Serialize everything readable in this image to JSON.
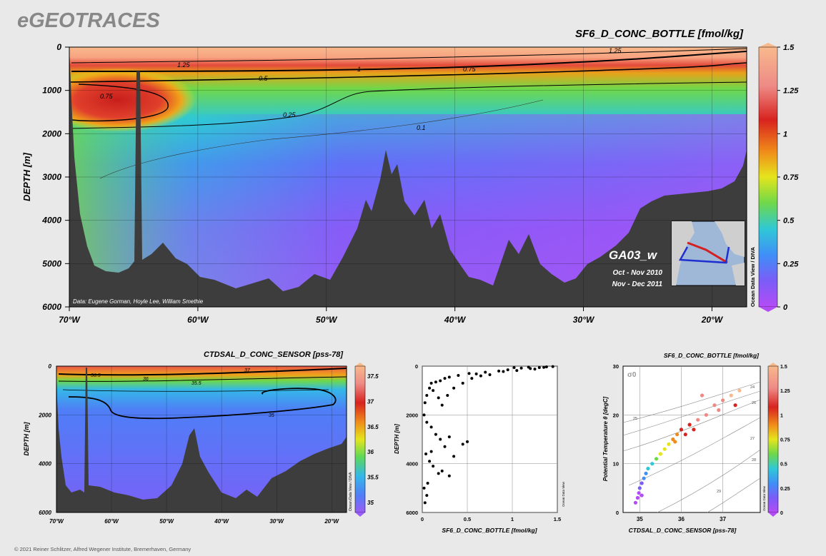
{
  "header": {
    "logo": "eGEOTRACES"
  },
  "footer": {
    "credit": "© 2021 Reiner Schlitzer, Alfred Wegener Institute, Bremerhaven, Germany"
  },
  "colors": {
    "background": "#e9e9e9",
    "seafloor": "#3d3d3d",
    "scale": [
      "#b44cf6",
      "#7b5cf7",
      "#3f8ff7",
      "#2fc8d6",
      "#6fd84a",
      "#e5e51c",
      "#f08a1a",
      "#d8231f",
      "#ee8a86",
      "#f8b98c"
    ]
  },
  "section": {
    "title": "SF6_D_CONC_BOTTLE [fmol/kg]",
    "ylabel": "DEPTH [m]",
    "credit": "Data: Eugene Gorman, Hoyle Lee, William Smethie",
    "cruise": "GA03_w",
    "dates": [
      "Oct - Nov 2010",
      "Nov - Dec 2011"
    ],
    "odv_label": "Ocean Data View / DIVA",
    "colorbar_ticks": [
      "1.5",
      "1.25",
      "1",
      "0.75",
      "0.5",
      "0.25",
      "0"
    ],
    "contour_labels": [
      "1.25",
      "1.25",
      "1",
      "0.75",
      "0.5",
      "0.75",
      "0.25",
      "0.1"
    ]
  },
  "salinity": {
    "title": "CTDSAL_D_CONC_SENSOR [pss-78]",
    "ylabel": "DEPTH [m]",
    "odv_label": "Ocean Data View / DIVA",
    "colorbar_ticks": [
      "37.5",
      "37",
      "36.5",
      "36",
      "35.5",
      "35"
    ],
    "contour_labels": [
      "36.5",
      "37",
      "36",
      "35.5",
      "35"
    ]
  },
  "profile": {
    "xlabel": "SF6_D_CONC_BOTTLE [fmol/kg]",
    "ylabel": "DEPTH [m]",
    "odv_label": "Ocean Data View"
  },
  "ts": {
    "title": "SF6_D_CONC_BOTTLE [fmol/kg]",
    "xlabel": "CTDSAL_D_CONC_SENSOR [pss-78]",
    "ylabel": "Potential Temperature θ [degC]",
    "sigma_label": "σ0",
    "odv_label": "Ocean Data View",
    "colorbar_ticks": [
      "1.5",
      "1.25",
      "1",
      "0.75",
      "0.5",
      "0.25",
      "0"
    ],
    "isopycnal_labels": [
      "24",
      "25",
      "26",
      "27",
      "28",
      "29"
    ]
  },
  "chart_data": [
    {
      "type": "heatmap",
      "id": "sf6_section",
      "title": "SF6_D_CONC_BOTTLE [fmol/kg]",
      "ylabel": "DEPTH [m]",
      "x_ticks": [
        "70°W",
        "60°W",
        "50°W",
        "40°W",
        "30°W",
        "20°W"
      ],
      "x_tick_values": [
        -70,
        -60,
        -50,
        -40,
        -30,
        -20
      ],
      "y_ticks": [
        0,
        1000,
        2000,
        3000,
        4000,
        5000,
        6000
      ],
      "xlim": [
        -70,
        -17.3
      ],
      "ylim": [
        0,
        6000
      ],
      "colorbar_range": [
        0,
        1.5
      ]
    },
    {
      "type": "heatmap",
      "id": "salinity_section",
      "title": "CTDSAL_D_CONC_SENSOR [pss-78]",
      "ylabel": "DEPTH [m]",
      "x_ticks": [
        "70°W",
        "60°W",
        "50°W",
        "40°W",
        "30°W",
        "20°W"
      ],
      "x_tick_values": [
        -70,
        -60,
        -50,
        -40,
        -30,
        -20
      ],
      "y_ticks": [
        0,
        2000,
        4000,
        6000
      ],
      "xlim": [
        -70,
        -17.3
      ],
      "ylim": [
        0,
        6000
      ],
      "colorbar_range": [
        34.8,
        37.7
      ]
    },
    {
      "type": "scatter",
      "id": "sf6_profile",
      "xlabel": "SF6_D_CONC_BOTTLE [fmol/kg]",
      "ylabel": "DEPTH [m]",
      "x_ticks": [
        "0",
        "0.5",
        "1",
        "1.5"
      ],
      "y_ticks": [
        "0",
        "2000",
        "4000",
        "6000"
      ],
      "xlim": [
        0,
        1.5
      ],
      "ylim": [
        0,
        6000
      ],
      "points": [
        [
          1.18,
          40
        ],
        [
          1.3,
          60
        ],
        [
          1.38,
          30
        ],
        [
          1.1,
          80
        ],
        [
          1.25,
          120
        ],
        [
          0.95,
          150
        ],
        [
          1.02,
          60
        ],
        [
          0.85,
          200
        ],
        [
          0.7,
          250
        ],
        [
          0.6,
          320
        ],
        [
          0.52,
          300
        ],
        [
          0.4,
          380
        ],
        [
          0.3,
          450
        ],
        [
          0.25,
          500
        ],
        [
          0.2,
          600
        ],
        [
          0.15,
          650
        ],
        [
          0.1,
          700
        ],
        [
          0.08,
          900
        ],
        [
          0.05,
          1200
        ],
        [
          0.03,
          1500
        ],
        [
          0.12,
          1000
        ],
        [
          0.18,
          1300
        ],
        [
          0.22,
          1600
        ],
        [
          0.28,
          1200
        ],
        [
          0.35,
          900
        ],
        [
          0.45,
          700
        ],
        [
          0.55,
          500
        ],
        [
          0.65,
          400
        ],
        [
          0.75,
          350
        ],
        [
          0.9,
          220
        ],
        [
          1.05,
          180
        ],
        [
          1.2,
          100
        ],
        [
          1.45,
          20
        ],
        [
          1.35,
          50
        ],
        [
          0.02,
          2000
        ],
        [
          0.05,
          2300
        ],
        [
          0.1,
          2500
        ],
        [
          0.15,
          2800
        ],
        [
          0.2,
          3000
        ],
        [
          0.25,
          3300
        ],
        [
          0.3,
          2900
        ],
        [
          0.5,
          3100
        ],
        [
          0.45,
          3200
        ],
        [
          0.04,
          3600
        ],
        [
          0.08,
          3900
        ],
        [
          0.12,
          4100
        ],
        [
          0.18,
          4400
        ],
        [
          0.22,
          4300
        ],
        [
          0.3,
          4500
        ],
        [
          0.02,
          5000
        ],
        [
          0.05,
          5300
        ],
        [
          0.03,
          5600
        ],
        [
          0.06,
          4800
        ],
        [
          0.1,
          3500
        ],
        [
          0.35,
          3700
        ]
      ]
    },
    {
      "type": "scatter",
      "id": "ts_diagram",
      "title": "SF6_D_CONC_BOTTLE [fmol/kg]",
      "xlabel": "CTDSAL_D_CONC_SENSOR [pss-78]",
      "ylabel": "Potential Temperature θ [degC]",
      "x_ticks": [
        "35",
        "36",
        "37"
      ],
      "y_ticks": [
        "0",
        "10",
        "20",
        "30"
      ],
      "xlim": [
        34.6,
        37.9
      ],
      "ylim": [
        0,
        30
      ],
      "colorbar_range": [
        0,
        1.5
      ],
      "points": [
        [
          34.9,
          2,
          0.02
        ],
        [
          34.95,
          3,
          0.05
        ],
        [
          34.98,
          4,
          0.08
        ],
        [
          35.0,
          5,
          0.12
        ],
        [
          35.05,
          6,
          0.2
        ],
        [
          35.1,
          7,
          0.3
        ],
        [
          35.15,
          8,
          0.35
        ],
        [
          35.2,
          9,
          0.45
        ],
        [
          35.3,
          10,
          0.55
        ],
        [
          35.4,
          11,
          0.65
        ],
        [
          35.5,
          12,
          0.75
        ],
        [
          35.6,
          13,
          0.85
        ],
        [
          35.7,
          14,
          0.9
        ],
        [
          35.8,
          15,
          1.0
        ],
        [
          35.9,
          16,
          1.05
        ],
        [
          36.0,
          17,
          1.1
        ],
        [
          36.2,
          18,
          1.2
        ],
        [
          36.4,
          19,
          1.25
        ],
        [
          36.6,
          20,
          1.3
        ],
        [
          36.8,
          22,
          1.35
        ],
        [
          37.0,
          23,
          1.4
        ],
        [
          37.2,
          24,
          1.42
        ],
        [
          37.4,
          25,
          1.45
        ],
        [
          36.5,
          24,
          1.4
        ],
        [
          36.9,
          21,
          1.3
        ],
        [
          37.3,
          22,
          1.2
        ],
        [
          35.85,
          14.5,
          0.95
        ],
        [
          36.1,
          16,
          1.15
        ],
        [
          36.3,
          17,
          1.2
        ],
        [
          35.05,
          3.5,
          0.05
        ]
      ]
    }
  ]
}
